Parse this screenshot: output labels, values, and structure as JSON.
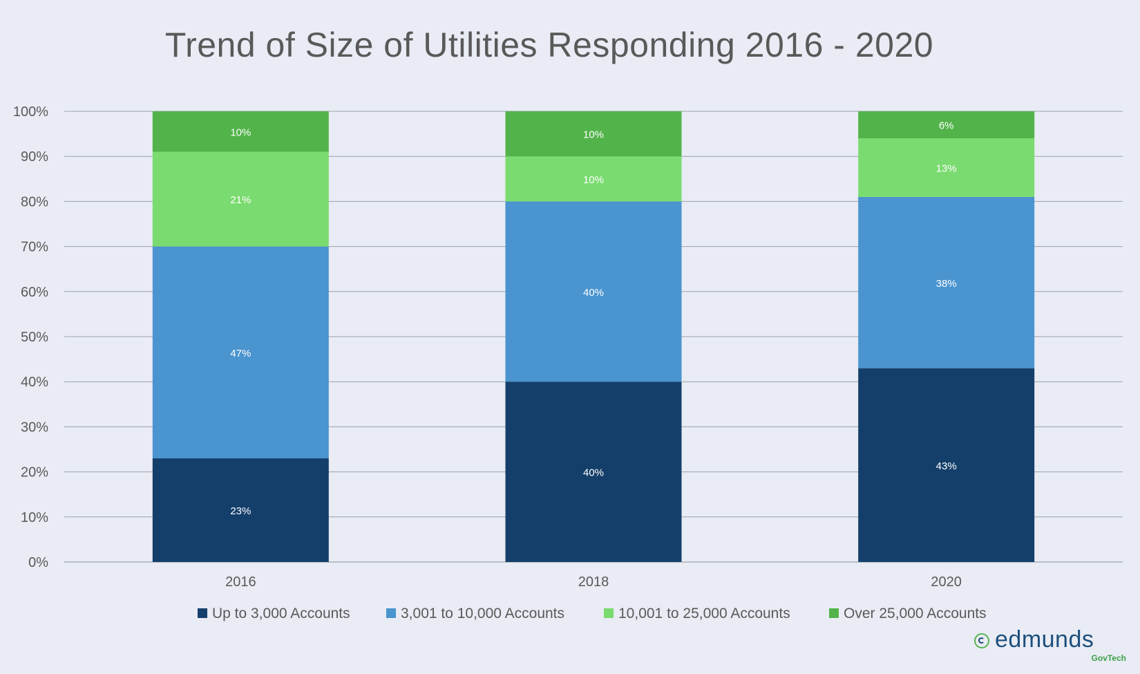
{
  "chart_data": {
    "type": "bar",
    "stacked": true,
    "title": "Trend of Size of Utilities Responding 2016 - 2020",
    "categories": [
      "2016",
      "2018",
      "2020"
    ],
    "ylim": [
      0,
      100
    ],
    "yticks": [
      "0%",
      "10%",
      "20%",
      "30%",
      "40%",
      "50%",
      "60%",
      "70%",
      "80%",
      "90%",
      "100%"
    ],
    "grid": true,
    "legend_position": "bottom",
    "series": [
      {
        "name": "Up to 3,000 Accounts",
        "color": "#153f6b",
        "values": [
          23,
          40,
          43
        ],
        "labels": [
          "23%",
          "40%",
          "43%"
        ]
      },
      {
        "name": "3,001 to 10,000 Accounts",
        "color": "#4a94cf",
        "values": [
          47,
          40,
          38
        ],
        "labels": [
          "47%",
          "40%",
          "38%"
        ]
      },
      {
        "name": "10,001 to 25,000 Accounts",
        "color": "#7adb70",
        "values": [
          21,
          10,
          13
        ],
        "labels": [
          "21%",
          "10%",
          "13%"
        ]
      },
      {
        "name": "Over 25,000 Accounts",
        "color": "#52b34a",
        "values": [
          10,
          10,
          6
        ],
        "labels": [
          "10%",
          "10%",
          "6%"
        ]
      }
    ]
  },
  "brand": {
    "name": "edmunds",
    "sub": "GovTech"
  }
}
